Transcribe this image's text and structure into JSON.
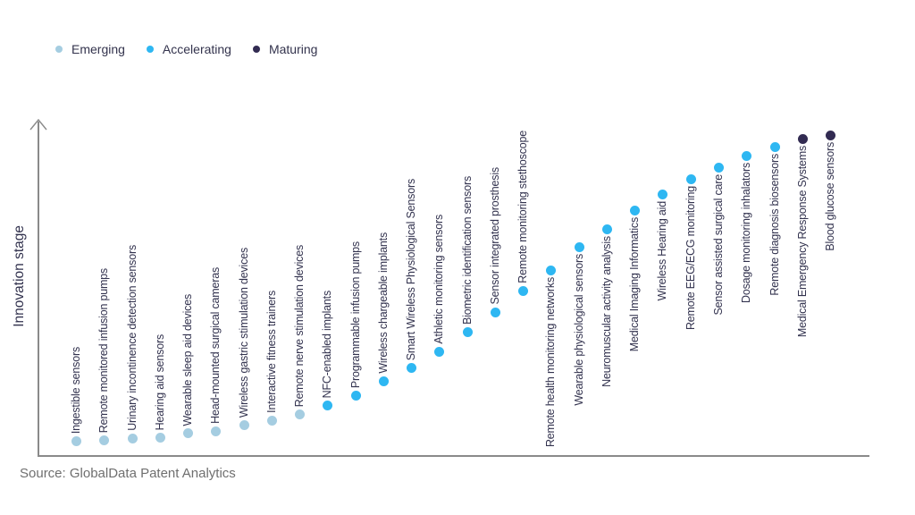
{
  "legend": {
    "items": [
      {
        "label": "Emerging",
        "color": "#a5cde1"
      },
      {
        "label": "Accelerating",
        "color": "#2eb7f2"
      },
      {
        "label": "Maturing",
        "color": "#322b52"
      }
    ]
  },
  "source_note": "Source: GlobalData Patent Analytics",
  "chart_data": {
    "type": "scatter",
    "title": "",
    "xlabel": "",
    "ylabel": "Innovation stage",
    "legend_position": "top-left",
    "grid": false,
    "y_axis": {
      "ticks": "none",
      "note": "conceptual axis with upward arrow; values below are relative heights 0-100 estimated from dot positions"
    },
    "color_encoding": "dot color = maturity stage (Emerging / Accelerating / Maturing)",
    "points": [
      {
        "label": "Ingestible sensors",
        "stage": "Emerging",
        "value": 4.6,
        "label_side": "above"
      },
      {
        "label": "Remote monitored infusion pumps",
        "stage": "Emerging",
        "value": 4.9,
        "label_side": "above"
      },
      {
        "label": "Urinary incontinence detection sensors",
        "stage": "Emerging",
        "value": 5.4,
        "label_side": "above"
      },
      {
        "label": "Hearing aid sensors",
        "stage": "Emerging",
        "value": 5.7,
        "label_side": "above"
      },
      {
        "label": "Wearable sleep aid devices",
        "stage": "Emerging",
        "value": 7.0,
        "label_side": "above"
      },
      {
        "label": "Head-mounted surgical cameras",
        "stage": "Emerging",
        "value": 7.6,
        "label_side": "above"
      },
      {
        "label": "Wireless gastric stimulation devices",
        "stage": "Emerging",
        "value": 9.5,
        "label_side": "above"
      },
      {
        "label": "Interactive fitness trainers",
        "stage": "Emerging",
        "value": 10.8,
        "label_side": "above"
      },
      {
        "label": "Remote nerve stimulation devices",
        "stage": "Emerging",
        "value": 12.7,
        "label_side": "above"
      },
      {
        "label": "NFC-enabled implants",
        "stage": "Accelerating",
        "value": 15.4,
        "label_side": "above"
      },
      {
        "label": "Programmable infusion pumps",
        "stage": "Accelerating",
        "value": 18.4,
        "label_side": "above"
      },
      {
        "label": "Wireless chargeable implants",
        "stage": "Accelerating",
        "value": 22.7,
        "label_side": "above"
      },
      {
        "label": "Smart Wireless Physiological Sensors",
        "stage": "Accelerating",
        "value": 26.8,
        "label_side": "above"
      },
      {
        "label": "Athletic monitoring sensors",
        "stage": "Accelerating",
        "value": 31.6,
        "label_side": "above"
      },
      {
        "label": "Biometric identification sensors",
        "stage": "Accelerating",
        "value": 37.6,
        "label_side": "above"
      },
      {
        "label": "Sensor integrated prosthesis",
        "stage": "Accelerating",
        "value": 43.5,
        "label_side": "above"
      },
      {
        "label": "Remote monitoring stethoscope",
        "stage": "Accelerating",
        "value": 50.0,
        "label_side": "above"
      },
      {
        "label": "Remote health monitoring networks",
        "stage": "Accelerating",
        "value": 56.2,
        "label_side": "below"
      },
      {
        "label": "Wearable physiological sensors",
        "stage": "Accelerating",
        "value": 63.2,
        "label_side": "below"
      },
      {
        "label": "Neuromuscular activity analysis",
        "stage": "Accelerating",
        "value": 68.6,
        "label_side": "below"
      },
      {
        "label": "Medical Imaging Informatics",
        "stage": "Accelerating",
        "value": 74.3,
        "label_side": "below"
      },
      {
        "label": "Wireless Hearing aid",
        "stage": "Accelerating",
        "value": 79.2,
        "label_side": "below"
      },
      {
        "label": "Remote EEG/ECG monitoring",
        "stage": "Accelerating",
        "value": 83.8,
        "label_side": "below"
      },
      {
        "label": "Sensor assisted surgical care",
        "stage": "Accelerating",
        "value": 87.3,
        "label_side": "below"
      },
      {
        "label": "Dosage monitoring inhalators",
        "stage": "Accelerating",
        "value": 90.8,
        "label_side": "below"
      },
      {
        "label": "Remote diagnosis biosensors",
        "stage": "Accelerating",
        "value": 93.5,
        "label_side": "below"
      },
      {
        "label": "Medical Emergency Response Systems",
        "stage": "Maturing",
        "value": 96.0,
        "label_side": "below"
      },
      {
        "label": "Blood glucose sensors",
        "stage": "Maturing",
        "value": 97.0,
        "label_side": "below"
      }
    ]
  }
}
